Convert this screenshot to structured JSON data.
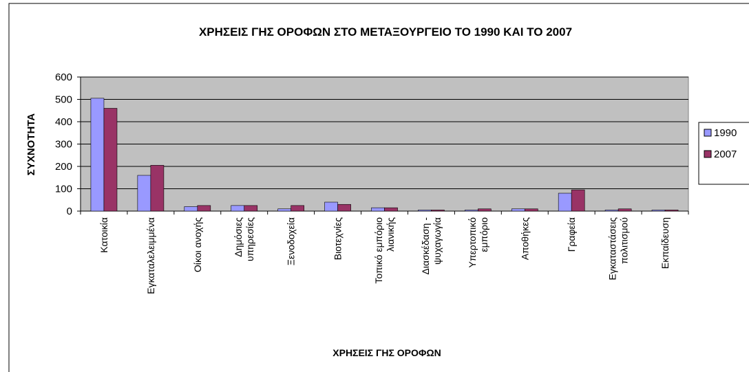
{
  "chart_data": {
    "type": "bar",
    "title": "ΧΡΗΣΕΙΣ ΓΗΣ ΟΡΟΦΩΝ ΣΤΟ ΜΕΤΑΞΟΥΡΓΕΙΟ ΤΟ 1990 ΚΑΙ ΤΟ 2007",
    "x_label": "ΧΡΗΣΕΙΣ ΓΗΣ ΟΡΟΦΩΝ",
    "y_label": "ΣΥΧΝΟΤΗΤΑ",
    "categories": [
      "Κατοικία",
      "Εγκαταλελειμμένα",
      "Οίκοι ανοχής",
      "Δημόσιες\nυπηρεσίες",
      "Ξενοδοχεία",
      "Βιοτεχνίες",
      "Τοπικό εμπόριο\nλιανικής",
      "Διασκέδαση -\nψυχαγωγία",
      "Υπερτοπικό\nεμπόριο",
      "Αποθήκες",
      "Γραφεία",
      "Εγκαταστάσεις\nπολιτισμού",
      "Εκπαίδευση"
    ],
    "series": [
      {
        "name": "1990",
        "color": "#9999ff",
        "values": [
          505,
          160,
          20,
          25,
          10,
          40,
          15,
          5,
          5,
          10,
          80,
          5,
          5
        ]
      },
      {
        "name": "2007",
        "color": "#993366",
        "values": [
          460,
          205,
          25,
          25,
          25,
          30,
          15,
          5,
          10,
          10,
          95,
          10,
          5
        ]
      }
    ],
    "ylim": [
      0,
      600
    ],
    "yticks": [
      0,
      100,
      200,
      300,
      400,
      500,
      600
    ],
    "grid": true,
    "legend": "right"
  }
}
